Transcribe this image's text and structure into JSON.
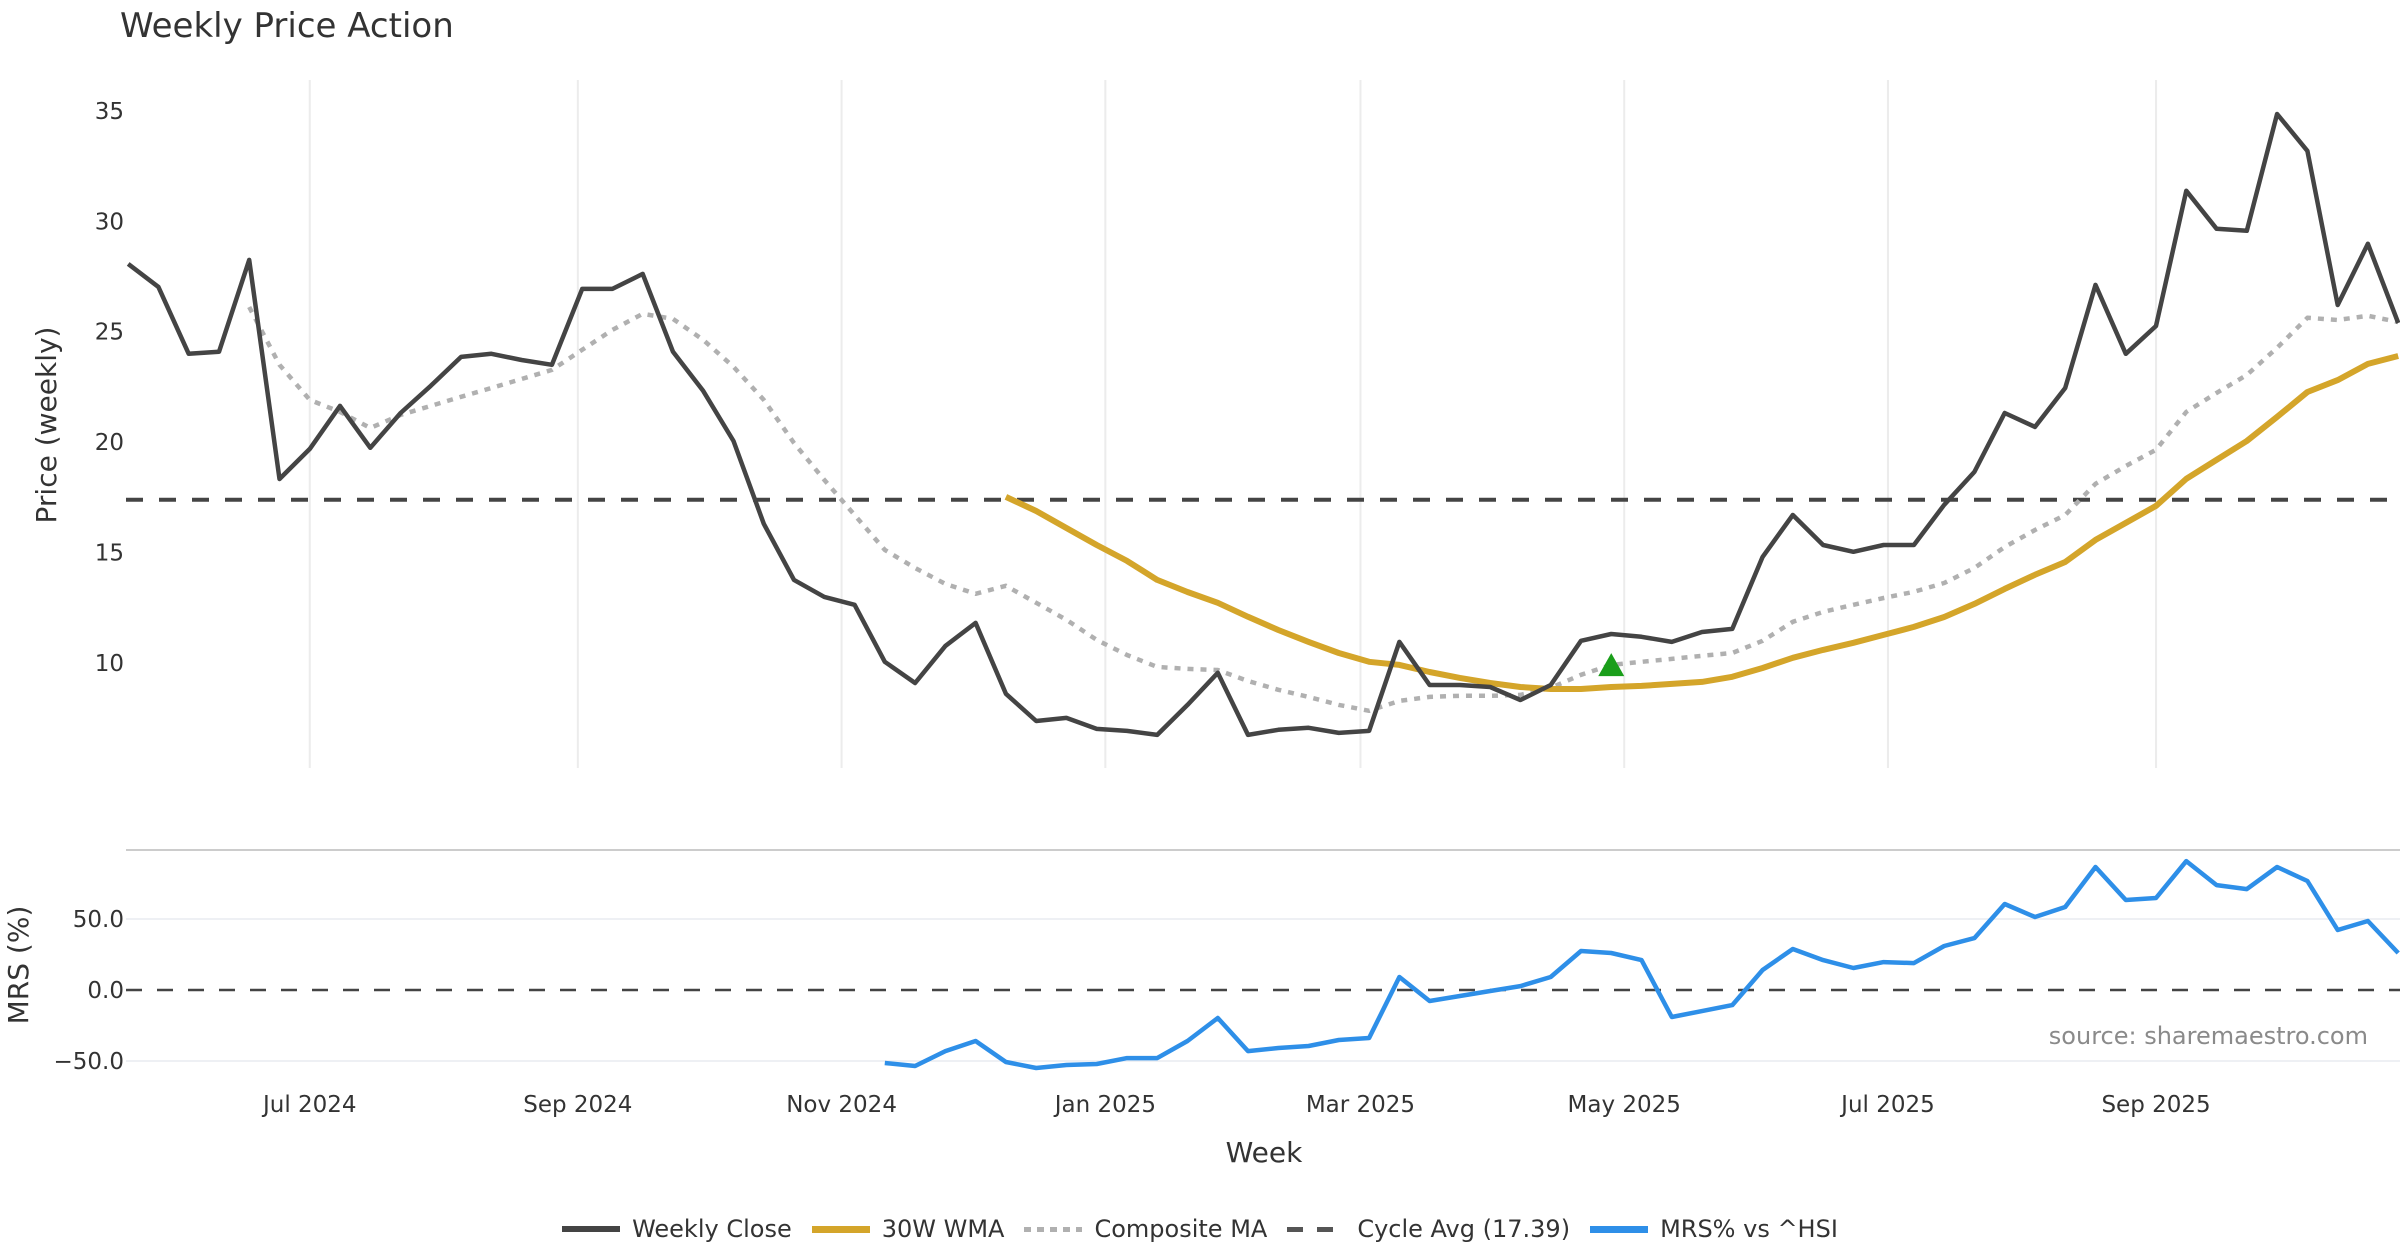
{
  "title": "Weekly Price Action",
  "source_note": "source: sharemaestro.com",
  "colors": {
    "close": "#444444",
    "wma": "#D4A52A",
    "composite": "#b0b0b0",
    "cycle": "#444444",
    "mrs": "#2E8FE8",
    "signal": "#1a9e1a",
    "grid": "#ececec",
    "separator": "#cccccc"
  },
  "legend": [
    {
      "label": "Weekly Close",
      "style": "solid-dark"
    },
    {
      "label": "30W WMA",
      "style": "solid-gold"
    },
    {
      "label": "Composite MA",
      "style": "dotted"
    },
    {
      "label": "Cycle Avg (17.39)",
      "style": "dashed"
    },
    {
      "label": "MRS% vs ^HSI",
      "style": "solid-blue"
    }
  ],
  "chart_data": [
    {
      "type": "line",
      "panel": "price",
      "title": "Weekly Price Action",
      "xlabel": "Week",
      "ylabel": "Price (weekly)",
      "x_start": "2024-05-20",
      "x_step_days": 7,
      "x_range_weeks": [
        -0.6,
        75.06
      ],
      "ylim": [
        5.24,
        36.4
      ],
      "y_ticks": [
        10,
        15,
        20,
        25,
        30,
        35
      ],
      "y_tick_labels": [
        "10",
        "15",
        "20",
        "25",
        "30",
        "35"
      ],
      "x_ticks": [
        {
          "date": "2024-07-01",
          "label": "Jul 2024"
        },
        {
          "date": "2024-09-01",
          "label": "Sep 2024"
        },
        {
          "date": "2024-11-01",
          "label": "Nov 2024"
        },
        {
          "date": "2025-01-01",
          "label": "Jan 2025"
        },
        {
          "date": "2025-03-01",
          "label": "Mar 2025"
        },
        {
          "date": "2025-05-01",
          "label": "May 2025"
        },
        {
          "date": "2025-07-01",
          "label": "Jul 2025"
        },
        {
          "date": "2025-09-01",
          "label": "Sep 2025"
        }
      ],
      "grid": "vertical",
      "series": [
        {
          "name": "Weekly Close",
          "start_index": 0,
          "values": [
            28.07,
            27.03,
            24.0,
            24.09,
            28.25,
            18.33,
            19.69,
            21.64,
            19.74,
            21.32,
            22.55,
            23.86,
            24.0,
            23.72,
            23.5,
            26.94,
            26.94,
            27.62,
            24.09,
            22.32,
            20.05,
            16.3,
            13.76,
            12.99,
            12.63,
            10.05,
            9.09,
            10.77,
            11.81,
            8.6,
            7.37,
            7.51,
            7.01,
            6.92,
            6.74,
            8.1,
            9.55,
            6.74,
            6.97,
            7.06,
            6.83,
            6.92,
            10.95,
            9.0,
            9.0,
            8.91,
            8.32,
            9.0,
            11.0,
            11.31,
            11.18,
            10.95,
            11.4,
            11.54,
            14.8,
            16.7,
            15.34,
            15.03,
            15.34,
            15.34,
            17.16,
            18.65,
            21.32,
            20.69,
            22.45,
            27.12,
            24.0,
            25.26,
            31.38,
            29.66,
            29.57,
            34.86,
            33.19,
            26.21,
            28.98,
            25.4
          ]
        },
        {
          "name": "30W WMA",
          "start_index": 29,
          "values": [
            17.52,
            16.88,
            16.11,
            15.34,
            14.62,
            13.76,
            13.21,
            12.72,
            12.09,
            11.49,
            10.95,
            10.45,
            10.05,
            9.91,
            9.59,
            9.32,
            9.09,
            8.91,
            8.82,
            8.82,
            8.91,
            8.96,
            9.05,
            9.14,
            9.37,
            9.77,
            10.23,
            10.59,
            10.91,
            11.27,
            11.63,
            12.08,
            12.67,
            13.35,
            13.99,
            14.57,
            15.57,
            16.34,
            17.11,
            18.34,
            19.2,
            20.05,
            21.14,
            22.27,
            22.81,
            23.54,
            23.9
          ]
        },
        {
          "name": "Composite MA",
          "start_index": 4,
          "values": [
            26.12,
            23.5,
            21.91,
            21.37,
            20.64,
            21.23,
            21.64,
            22.05,
            22.45,
            22.86,
            23.27,
            24.18,
            25.08,
            25.81,
            25.58,
            24.63,
            23.41,
            21.91,
            19.96,
            18.29,
            16.7,
            15.12,
            14.3,
            13.58,
            13.13,
            13.49,
            12.72,
            11.95,
            11.04,
            10.36,
            9.82,
            9.73,
            9.68,
            9.18,
            8.78,
            8.46,
            8.1,
            7.83,
            8.28,
            8.46,
            8.51,
            8.51,
            8.55,
            8.87,
            9.46,
            9.91,
            10.05,
            10.18,
            10.32,
            10.45,
            11.0,
            11.86,
            12.31,
            12.63,
            12.94,
            13.22,
            13.62,
            14.3,
            15.25,
            16.02,
            16.7,
            18.11,
            18.92,
            19.65,
            21.37,
            22.23,
            23.04,
            24.27,
            25.63,
            25.53,
            25.72,
            25.44
          ]
        },
        {
          "name": "Cycle Avg (17.39)",
          "constant": 17.39
        }
      ],
      "markers": [
        {
          "name": "buy-signal",
          "shape": "triangle-up",
          "index": 49,
          "value": 9.9
        }
      ]
    },
    {
      "type": "line",
      "panel": "mrs",
      "ylabel": "MRS (%)",
      "ylim": [
        -56.3,
        98.6
      ],
      "y_ticks": [
        -50,
        0,
        50
      ],
      "y_tick_labels": [
        "−50.0",
        "0.0",
        "50.0"
      ],
      "reference_line": 0,
      "grid": "horizontal",
      "series": [
        {
          "name": "MRS% vs ^HSI",
          "start_index": 25,
          "values": [
            -51.4,
            -53.5,
            -43.0,
            -35.9,
            -50.7,
            -54.9,
            -52.8,
            -52.1,
            -47.9,
            -47.9,
            -35.9,
            -19.7,
            -43.0,
            -40.8,
            -39.4,
            -35.2,
            -33.8,
            9.2,
            -7.7,
            -4.2,
            -0.7,
            2.8,
            9.2,
            27.5,
            26.1,
            21.1,
            -19.0,
            -14.8,
            -10.6,
            14.1,
            28.9,
            21.1,
            15.5,
            19.7,
            19.0,
            31.0,
            36.6,
            60.6,
            51.4,
            58.5,
            86.6,
            63.4,
            64.8,
            90.8,
            73.9,
            71.1,
            86.6,
            76.8,
            42.3,
            48.6,
            26.1
          ]
        }
      ]
    }
  ]
}
